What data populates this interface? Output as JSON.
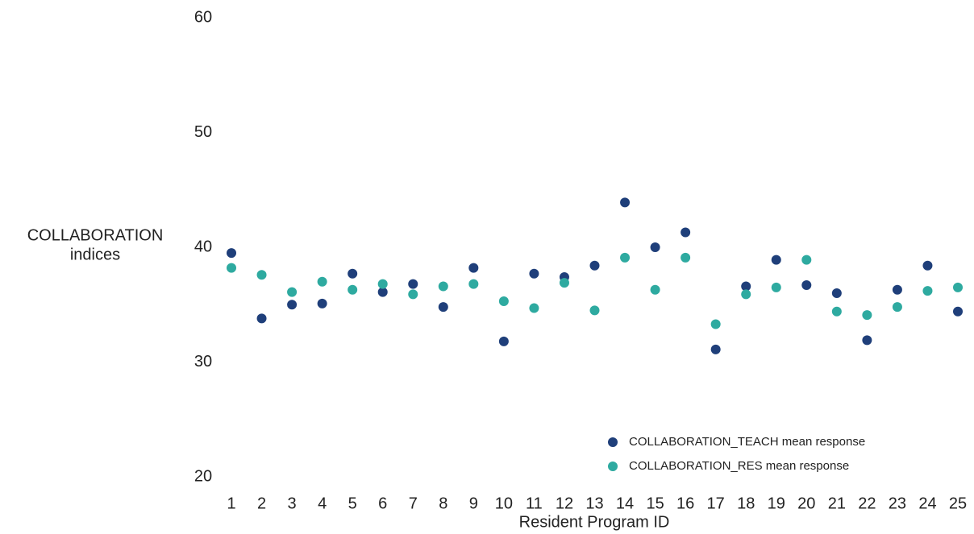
{
  "chart_data": {
    "type": "scatter",
    "y_label": [
      "COLLABORATION",
      "indices"
    ],
    "x_label": "Resident Program ID",
    "categories": [
      "1",
      "2",
      "3",
      "4",
      "5",
      "6",
      "7",
      "8",
      "9",
      "10",
      "11",
      "12",
      "13",
      "14",
      "15",
      "16",
      "17",
      "18",
      "19",
      "20",
      "21",
      "22",
      "23",
      "24",
      "25"
    ],
    "series": [
      {
        "name": "COLLABORATION_TEACH mean response",
        "color": "#1f3f7a",
        "values": [
          39.5,
          33.8,
          35.0,
          35.1,
          37.7,
          36.1,
          36.8,
          34.8,
          38.2,
          31.8,
          37.7,
          37.4,
          38.4,
          43.9,
          40.0,
          41.3,
          31.1,
          36.6,
          38.9,
          36.7,
          36.0,
          31.9,
          36.3,
          38.4,
          34.4
        ]
      },
      {
        "name": "COLLABORATION_RES mean response",
        "color": "#2eaaa0",
        "values": [
          38.2,
          37.6,
          36.1,
          37.0,
          36.3,
          36.8,
          35.9,
          36.6,
          36.8,
          35.3,
          34.7,
          36.9,
          34.5,
          39.1,
          36.3,
          39.1,
          33.3,
          35.9,
          36.5,
          38.9,
          34.4,
          34.1,
          34.8,
          36.2,
          36.5
        ]
      }
    ],
    "ylim": [
      20,
      60
    ],
    "yticks": [
      20,
      30,
      40,
      50,
      60
    ],
    "grid": false,
    "legend": "bottom-right"
  }
}
